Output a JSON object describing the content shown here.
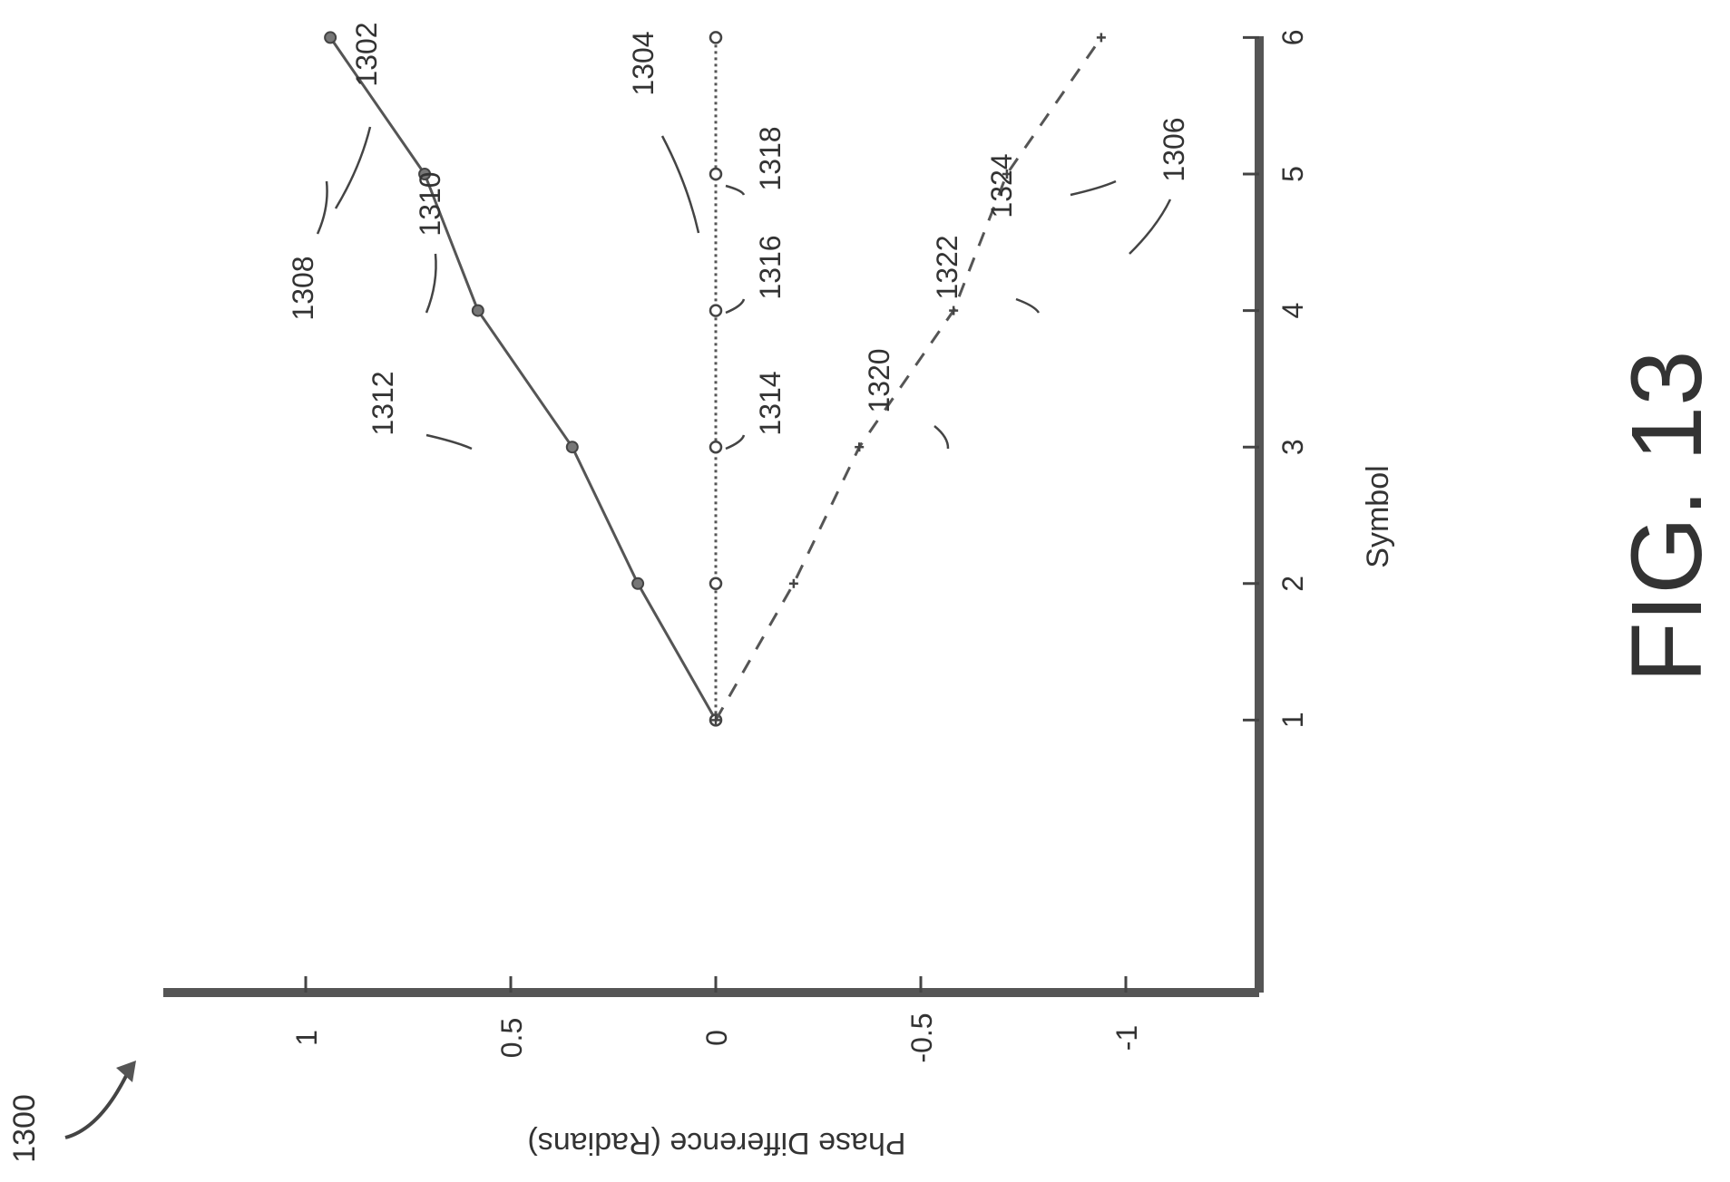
{
  "figure": {
    "ref_label": "1300",
    "caption": "FIG. 13"
  },
  "chart_data": {
    "type": "line",
    "xlabel": "Symbol",
    "ylabel": "Phase Difference (Radians)",
    "xlim": [
      0,
      7
    ],
    "ylim": [
      -1.35,
      1.35
    ],
    "x_ticks": [
      "1",
      "2",
      "3",
      "4",
      "5",
      "6"
    ],
    "y_ticks": [
      "1",
      "0.5",
      "0",
      "-0.5",
      "-1"
    ],
    "series": [
      {
        "label": "1302",
        "style": "solid",
        "x": [
          1,
          2,
          3,
          4,
          5,
          6
        ],
        "y": [
          0,
          0.19,
          0.35,
          0.58,
          0.71,
          0.94
        ]
      },
      {
        "label": "1304",
        "style": "dotted",
        "x": [
          1,
          2,
          3,
          4,
          5,
          6
        ],
        "y": [
          0,
          0,
          0,
          0,
          0,
          0
        ]
      },
      {
        "label": "1306",
        "style": "dashed",
        "x": [
          1,
          2,
          3,
          4,
          5,
          6
        ],
        "y": [
          0,
          -0.19,
          -0.35,
          -0.58,
          -0.71,
          -0.94
        ]
      }
    ],
    "annotations": [
      "1308",
      "1310",
      "1312",
      "1314",
      "1316",
      "1318",
      "1320",
      "1322",
      "1324"
    ]
  }
}
